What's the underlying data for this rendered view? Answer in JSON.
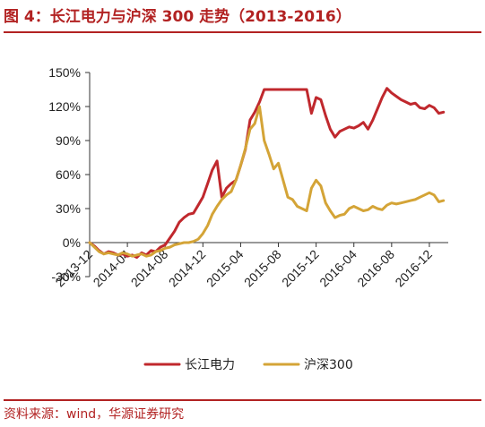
{
  "header": {
    "title": "图 4：长江电力与沪深 300 走势（2013-2016）"
  },
  "footer": {
    "source": "资料来源：wind，华源证券研究"
  },
  "colors": {
    "accent": "#b22222",
    "series1": "#c0282d",
    "series2": "#d4a437"
  },
  "chart_data": {
    "type": "line",
    "ylim": [
      -30,
      150
    ],
    "yticks": [
      "-30%",
      "0%",
      "30%",
      "60%",
      "90%",
      "120%",
      "150%"
    ],
    "ytick_values": [
      -30,
      0,
      30,
      60,
      90,
      120,
      150
    ],
    "xticks": [
      "2013-12",
      "2014-04",
      "2014-08",
      "2014-12",
      "2015-04",
      "2015-08",
      "2015-12",
      "2016-04",
      "2016-08",
      "2016-12"
    ],
    "xlim": [
      0,
      38
    ],
    "legend_position": "bottom",
    "series": [
      {
        "name": "长江电力",
        "color": "#c0282d",
        "x": [
          0,
          0.5,
          1,
          1.5,
          2,
          2.5,
          3,
          3.5,
          4,
          4.5,
          5,
          5.5,
          6,
          6.5,
          7,
          7.5,
          8,
          8.5,
          9,
          9.5,
          10,
          10.5,
          11,
          11.5,
          12,
          12.5,
          13,
          13.5,
          14,
          14.5,
          15,
          15.5,
          16,
          16.5,
          17,
          17.5,
          18,
          18.5,
          19,
          19.5,
          20,
          20.5,
          21,
          21.5,
          22,
          22.5,
          23,
          23.5,
          24,
          24.5,
          25,
          25.5,
          26,
          26.5,
          27,
          27.5,
          28,
          28.5,
          29,
          29.5,
          30,
          30.5,
          31,
          31.5,
          32,
          32.5,
          33,
          33.5,
          34,
          34.5,
          35,
          35.5,
          36,
          36.5,
          37,
          37.5
        ],
        "values": [
          0,
          -3,
          -7,
          -10,
          -8,
          -9,
          -11,
          -10,
          -12,
          -11,
          -13,
          -9,
          -11,
          -7,
          -8,
          -4,
          -2,
          4,
          10,
          18,
          22,
          25,
          26,
          33,
          40,
          52,
          64,
          72,
          40,
          48,
          52,
          55,
          68,
          82,
          108,
          115,
          124,
          135,
          135,
          135,
          135,
          135,
          135,
          135,
          135,
          135,
          135,
          114,
          128,
          126,
          112,
          100,
          93,
          98,
          100,
          102,
          101,
          103,
          106,
          100,
          108,
          118,
          128,
          136,
          132,
          129,
          126,
          124,
          122,
          123,
          119,
          118,
          121,
          119,
          114,
          115
        ]
      },
      {
        "name": "沪深300",
        "color": "#d4a437",
        "x": [
          0,
          0.5,
          1,
          1.5,
          2,
          2.5,
          3,
          3.5,
          4,
          4.5,
          5,
          5.5,
          6,
          6.5,
          7,
          7.5,
          8,
          8.5,
          9,
          9.5,
          10,
          10.5,
          11,
          11.5,
          12,
          12.5,
          13,
          13.5,
          14,
          14.5,
          15,
          15.5,
          16,
          16.5,
          17,
          17.5,
          18,
          18.5,
          19,
          19.5,
          20,
          20.5,
          21,
          21.5,
          22,
          22.5,
          23,
          23.5,
          24,
          24.5,
          25,
          25.5,
          26,
          26.5,
          27,
          27.5,
          28,
          28.5,
          29,
          29.5,
          30,
          30.5,
          31,
          31.5,
          32,
          32.5,
          33,
          33.5,
          34,
          34.5,
          35,
          35.5,
          36,
          36.5,
          37,
          37.5
        ],
        "values": [
          0,
          -4,
          -8,
          -10,
          -9,
          -10,
          -11,
          -9,
          -10,
          -12,
          -11,
          -10,
          -12,
          -11,
          -8,
          -7,
          -5,
          -4,
          -2,
          -1,
          0,
          0,
          1,
          3,
          8,
          15,
          25,
          32,
          38,
          42,
          45,
          55,
          68,
          83,
          100,
          105,
          120,
          90,
          78,
          65,
          70,
          55,
          40,
          38,
          32,
          30,
          28,
          48,
          55,
          50,
          35,
          28,
          22,
          24,
          25,
          30,
          32,
          30,
          28,
          29,
          32,
          30,
          29,
          33,
          35,
          34,
          35,
          36,
          37,
          38,
          40,
          42,
          44,
          42,
          36,
          37
        ]
      }
    ]
  }
}
